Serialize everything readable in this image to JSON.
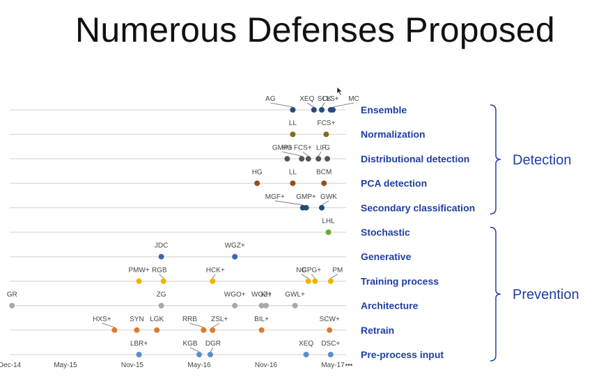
{
  "slide": {
    "title": "Numerous Defenses Proposed"
  },
  "chart_data": {
    "type": "timeline",
    "title": "Numerous Defenses Proposed",
    "x_range": [
      "2014-12",
      "2017-05"
    ],
    "x_ticks": [
      "Dec-14",
      "May-15",
      "Nov-15",
      "May-16",
      "Nov-16",
      "May-17"
    ],
    "groups": [
      {
        "name": "Detection",
        "rows": [
          "Ensemble",
          "Normalization",
          "Distributional detection",
          "PCA detection",
          "Secondary classification"
        ]
      },
      {
        "name": "Prevention",
        "rows": [
          "Stochastic",
          "Generative",
          "Training process",
          "Architecture",
          "Retrain",
          "Pre-process input"
        ]
      }
    ],
    "series": [
      {
        "name": "Ensemble",
        "color": "#2a4a7f",
        "points": [
          {
            "label": "AG",
            "date": "2017-01.4"
          },
          {
            "label": "XEQ",
            "date": "2017-03.3"
          },
          {
            "label": "SCK",
            "date": "2017-04.0"
          },
          {
            "label": "LLS+",
            "date": "2017-04.8"
          },
          {
            "label": "MC",
            "date": "2017-05.0"
          }
        ]
      },
      {
        "name": "Normalization",
        "color": "#8a6a1a",
        "points": [
          {
            "label": "LL",
            "date": "2017-01.4"
          },
          {
            "label": "FCS+",
            "date": "2017-04.4"
          }
        ]
      },
      {
        "name": "Distributional detection",
        "color": "#555555",
        "points": [
          {
            "label": "HG",
            "date": "2016-12.9"
          },
          {
            "label": "GMP+",
            "date": "2017-02.2"
          },
          {
            "label": "FCS+",
            "date": "2017-02.8"
          },
          {
            "label": "LIF",
            "date": "2017-03.7"
          },
          {
            "label": "G",
            "date": "2017-04.5"
          }
        ]
      },
      {
        "name": "PCA detection",
        "color": "#9a4a1a",
        "points": [
          {
            "label": "HG",
            "date": "2016-10.2"
          },
          {
            "label": "LL",
            "date": "2017-01.4"
          },
          {
            "label": "BCM",
            "date": "2017-04.2"
          }
        ]
      },
      {
        "name": "Secondary classification",
        "color": "#1f4e79",
        "points": [
          {
            "label": "MGF+",
            "date": "2017-02.3"
          },
          {
            "label": "GMP+",
            "date": "2017-02.6"
          },
          {
            "label": "GWK",
            "date": "2017-04.0"
          }
        ]
      },
      {
        "name": "Stochastic",
        "color": "#6aaa3a",
        "points": [
          {
            "label": "LHL",
            "date": "2017-04.6"
          }
        ]
      },
      {
        "name": "Generative",
        "color": "#3a66b0",
        "points": [
          {
            "label": "JDC",
            "date": "2016-01.6"
          },
          {
            "label": "WGZ+",
            "date": "2016-08.2"
          }
        ]
      },
      {
        "name": "Training process",
        "color": "#f0b400",
        "points": [
          {
            "label": "PMW+",
            "date": "2015-11.6"
          },
          {
            "label": "RGB",
            "date": "2016-01.8"
          },
          {
            "label": "HCK+",
            "date": "2016-06.2"
          },
          {
            "label": "NG",
            "date": "2017-02.8"
          },
          {
            "label": "CPG+",
            "date": "2017-03.4"
          },
          {
            "label": "PM",
            "date": "2017-04.8"
          }
        ]
      },
      {
        "name": "Architecture",
        "color": "#a8a8a8",
        "points": [
          {
            "label": "GR",
            "date": "2014-12.2"
          },
          {
            "label": "ZG",
            "date": "2016-01.6"
          },
          {
            "label": "WGO+",
            "date": "2016-08.2"
          },
          {
            "label": "WGZ+",
            "date": "2016-10.6"
          },
          {
            "label": "KH",
            "date": "2016-11.0"
          },
          {
            "label": "GWL+",
            "date": "2017-01.6"
          }
        ]
      },
      {
        "name": "Retrain",
        "color": "#e07a30",
        "points": [
          {
            "label": "HXS+",
            "date": "2015-09.4"
          },
          {
            "label": "SYN",
            "date": "2015-11.4"
          },
          {
            "label": "LGK",
            "date": "2016-01.2"
          },
          {
            "label": "RRB",
            "date": "2016-05.4"
          },
          {
            "label": "ZSL+",
            "date": "2016-06.2"
          },
          {
            "label": "BIL+",
            "date": "2016-10.6"
          },
          {
            "label": "SCW+",
            "date": "2017-04.7"
          }
        ]
      },
      {
        "name": "Pre-process input",
        "color": "#5b8fc8",
        "points": [
          {
            "label": "LBR+",
            "date": "2015-11.6"
          },
          {
            "label": "KGB",
            "date": "2016-05.0"
          },
          {
            "label": "DGR",
            "date": "2016-06.0"
          },
          {
            "label": "XEQ",
            "date": "2017-02.6"
          },
          {
            "label": "DSC+",
            "date": "2017-04.8"
          }
        ]
      }
    ],
    "axis_ellipsis": "•••"
  }
}
